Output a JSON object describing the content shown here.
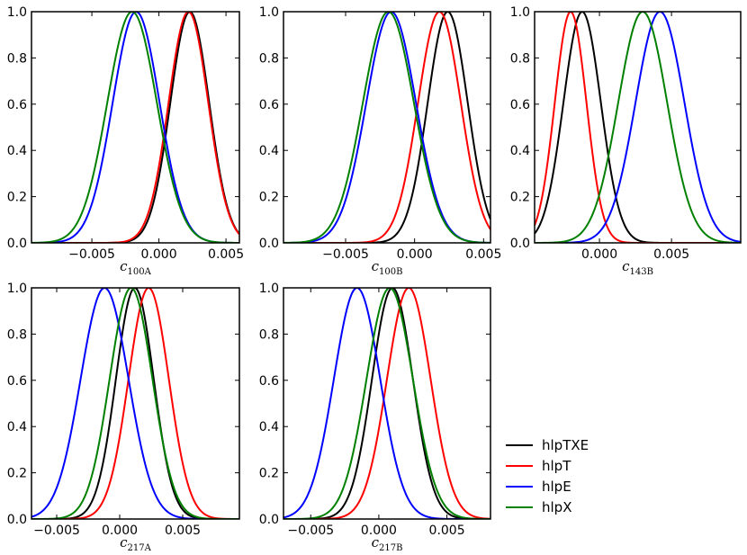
{
  "chart_data": [
    {
      "type": "line",
      "panel": "c100A",
      "xlabel": "c",
      "xlabel_sub": "100A",
      "xlim": [
        -0.0095,
        0.006
      ],
      "ylim": [
        0,
        1
      ],
      "xticks": [
        -0.005,
        0.0,
        0.005
      ],
      "xtick_labels": [
        "−0.005",
        "0.000",
        "0.005"
      ],
      "yticks": [
        0,
        0.2,
        0.4,
        0.6,
        0.8,
        1.0
      ],
      "ytick_labels": [
        "0.0",
        "0.2",
        "0.4",
        "0.6",
        "0.8",
        "1.0"
      ],
      "series": [
        {
          "name": "hlpTXE",
          "mu": 0.0023,
          "sigma": 0.00145
        },
        {
          "name": "hlpT",
          "mu": 0.0022,
          "sigma": 0.00148
        },
        {
          "name": "hlpE",
          "mu": -0.0017,
          "sigma": 0.00175
        },
        {
          "name": "hlpX",
          "mu": -0.002,
          "sigma": 0.00185
        }
      ]
    },
    {
      "type": "line",
      "panel": "c100B",
      "xlabel": "c",
      "xlabel_sub": "100B",
      "xlim": [
        -0.0095,
        0.0055
      ],
      "ylim": [
        0,
        1
      ],
      "xticks": [
        -0.005,
        0.0,
        0.005
      ],
      "xtick_labels": [
        "−0.005",
        "0.000",
        "0.005"
      ],
      "yticks": [
        0,
        0.2,
        0.4,
        0.6,
        0.8,
        1.0
      ],
      "ytick_labels": [
        "0.0",
        "0.2",
        "0.4",
        "0.6",
        "0.8",
        "1.0"
      ],
      "series": [
        {
          "name": "hlpTXE",
          "mu": 0.0024,
          "sigma": 0.00145
        },
        {
          "name": "hlpT",
          "mu": 0.0018,
          "sigma": 0.00155
        },
        {
          "name": "hlpE",
          "mu": -0.0017,
          "sigma": 0.0018
        },
        {
          "name": "hlpX",
          "mu": -0.0019,
          "sigma": 0.00185
        }
      ]
    },
    {
      "type": "line",
      "panel": "c143B",
      "xlabel": "c",
      "xlabel_sub": "143B",
      "xlim": [
        -0.0045,
        0.0098
      ],
      "ylim": [
        0,
        1
      ],
      "xticks": [
        0.0,
        0.005
      ],
      "xtick_labels": [
        "0.000",
        "0.005"
      ],
      "yticks": [
        0,
        0.2,
        0.4,
        0.6,
        0.8,
        1.0
      ],
      "ytick_labels": [
        "0.0",
        "0.2",
        "0.4",
        "0.6",
        "0.8",
        "1.0"
      ],
      "series": [
        {
          "name": "hlpTXE",
          "mu": -0.0012,
          "sigma": 0.0013
        },
        {
          "name": "hlpT",
          "mu": -0.002,
          "sigma": 0.0011
        },
        {
          "name": "hlpE",
          "mu": 0.0042,
          "sigma": 0.0017
        },
        {
          "name": "hlpX",
          "mu": 0.003,
          "sigma": 0.0017
        }
      ]
    },
    {
      "type": "line",
      "panel": "c217A",
      "xlabel": "c",
      "xlabel_sub": "217A",
      "xlim": [
        -0.007,
        0.0095
      ],
      "ylim": [
        0,
        1
      ],
      "xticks": [
        -0.005,
        0.0,
        0.005
      ],
      "xtick_labels": [
        "−0.005",
        "0.000",
        "0.005"
      ],
      "yticks": [
        0,
        0.2,
        0.4,
        0.6,
        0.8,
        1.0
      ],
      "ytick_labels": [
        "0.0",
        "0.2",
        "0.4",
        "0.6",
        "0.8",
        "1.0"
      ],
      "series": [
        {
          "name": "hlpTXE",
          "mu": 0.0012,
          "sigma": 0.0015
        },
        {
          "name": "hlpT",
          "mu": 0.0023,
          "sigma": 0.0016
        },
        {
          "name": "hlpE",
          "mu": -0.0012,
          "sigma": 0.0019
        },
        {
          "name": "hlpX",
          "mu": 0.0009,
          "sigma": 0.0017
        }
      ]
    },
    {
      "type": "line",
      "panel": "c217B",
      "xlabel": "c",
      "xlabel_sub": "217B",
      "xlim": [
        -0.007,
        0.0082
      ],
      "ylim": [
        0,
        1
      ],
      "xticks": [
        -0.005,
        0.0,
        0.005
      ],
      "xtick_labels": [
        "−0.005",
        "0.000",
        "0.005"
      ],
      "yticks": [
        0,
        0.2,
        0.4,
        0.6,
        0.8,
        1.0
      ],
      "ytick_labels": [
        "0.0",
        "0.2",
        "0.4",
        "0.6",
        "0.8",
        "1.0"
      ],
      "series": [
        {
          "name": "hlpTXE",
          "mu": 0.001,
          "sigma": 0.0015
        },
        {
          "name": "hlpT",
          "mu": 0.0022,
          "sigma": 0.0016
        },
        {
          "name": "hlpE",
          "mu": -0.0016,
          "sigma": 0.0017
        },
        {
          "name": "hlpX",
          "mu": 0.0008,
          "sigma": 0.0017
        }
      ]
    }
  ],
  "legend": {
    "position": "lower-right",
    "entries": [
      {
        "name": "hlpTXE",
        "color": "#000000"
      },
      {
        "name": "hlpT",
        "color": "#ff0000"
      },
      {
        "name": "hlpE",
        "color": "#0000ff"
      },
      {
        "name": "hlpX",
        "color": "#008000"
      }
    ]
  }
}
